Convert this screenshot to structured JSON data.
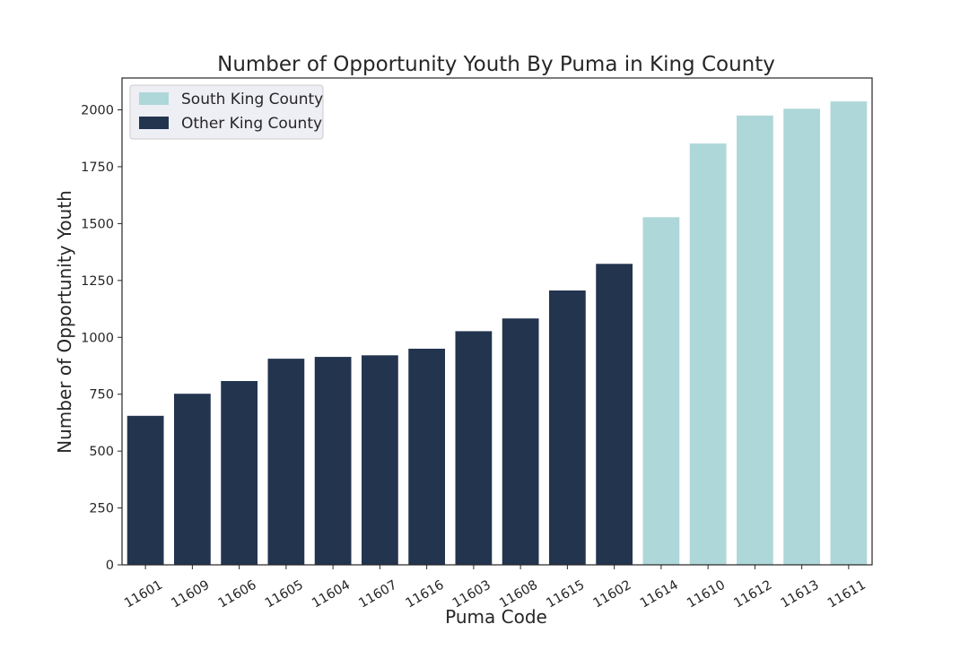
{
  "chart_data": {
    "type": "bar",
    "title": "Number of Opportunity Youth By Puma in King County",
    "xlabel": "Puma Code",
    "ylabel": "Number of Opportunity Youth",
    "categories": [
      "11601",
      "11609",
      "11606",
      "11605",
      "11604",
      "11607",
      "11616",
      "11603",
      "11608",
      "11615",
      "11602",
      "11614",
      "11610",
      "11612",
      "11613",
      "11611"
    ],
    "values": [
      655,
      752,
      808,
      906,
      914,
      921,
      950,
      1027,
      1083,
      1206,
      1323,
      1528,
      1852,
      1975,
      2005,
      2037
    ],
    "groups": [
      "Other King County",
      "Other King County",
      "Other King County",
      "Other King County",
      "Other King County",
      "Other King County",
      "Other King County",
      "Other King County",
      "Other King County",
      "Other King County",
      "Other King County",
      "South King County",
      "South King County",
      "South King County",
      "South King County",
      "South King County"
    ],
    "ylim": [
      0,
      2140
    ],
    "yticks": [
      0,
      250,
      500,
      750,
      1000,
      1250,
      1500,
      1750,
      2000
    ],
    "legend": {
      "position": "top-left",
      "items": [
        {
          "label": "South King County",
          "color": "#aed7d9"
        },
        {
          "label": "Other King County",
          "color": "#23344f"
        }
      ]
    },
    "grid": false
  }
}
